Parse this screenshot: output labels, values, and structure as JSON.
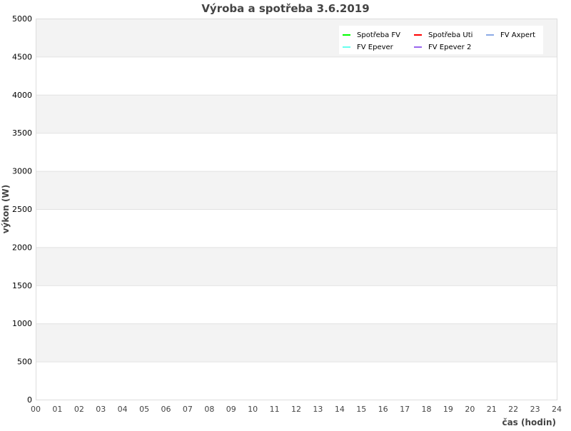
{
  "chart_data": {
    "type": "line",
    "title": "Výroba a spotřeba 3.6.2019",
    "xlabel": "čas (hodin)",
    "ylabel": "výkon (W)",
    "xlim": [
      0,
      24
    ],
    "ylim": [
      0,
      5000
    ],
    "x_ticks": [
      "00",
      "01",
      "02",
      "03",
      "04",
      "05",
      "06",
      "07",
      "08",
      "09",
      "10",
      "11",
      "12",
      "13",
      "14",
      "15",
      "16",
      "17",
      "18",
      "19",
      "20",
      "21",
      "22",
      "23",
      "24"
    ],
    "y_ticks": [
      0,
      500,
      1000,
      1500,
      2000,
      2500,
      3000,
      3500,
      4000,
      4500,
      5000
    ],
    "grid": "horizontal alternating bands",
    "legend_position": "top-right",
    "series": [
      {
        "name": "Spotřeba FV",
        "color": "#00ff00",
        "values": []
      },
      {
        "name": "Spotřeba Uti",
        "color": "#ff0000",
        "values": []
      },
      {
        "name": "FV Axpert",
        "color": "#8caae6",
        "values": []
      },
      {
        "name": "FV Epever",
        "color": "#66ffee",
        "values": []
      },
      {
        "name": "FV Epever 2",
        "color": "#9966ee",
        "values": []
      }
    ]
  }
}
